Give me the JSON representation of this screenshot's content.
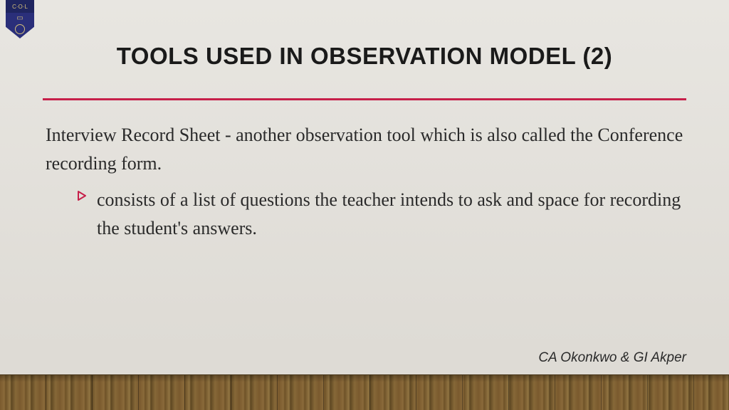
{
  "logo": {
    "letters": "C·O·L",
    "shield_color": "#2a2f7a",
    "shield_top_color": "#1f2560",
    "accent_color": "#d4c07a"
  },
  "title": {
    "text": "TOOLS USED IN OBSERVATION MODEL (2)",
    "fontsize": 33,
    "color": "#1a1a1a"
  },
  "divider": {
    "color": "#c6204a",
    "thickness": 3
  },
  "body": {
    "para1": "Interview Record Sheet - another observation tool which is also called the Conference recording form.",
    "bullet_item": "consists of a list of questions the teacher intends to ask and space for recording the student's answers.",
    "bullet_color": "#c6204a",
    "fontsize": 26,
    "text_color": "#2a2a2a"
  },
  "attribution": {
    "text": "CA Okonkwo & GI Akper",
    "fontsize": 19
  },
  "background": {
    "wall_top": "#e8e6e1",
    "wall_bottom": "#dedbd5",
    "floor_height": 50
  }
}
